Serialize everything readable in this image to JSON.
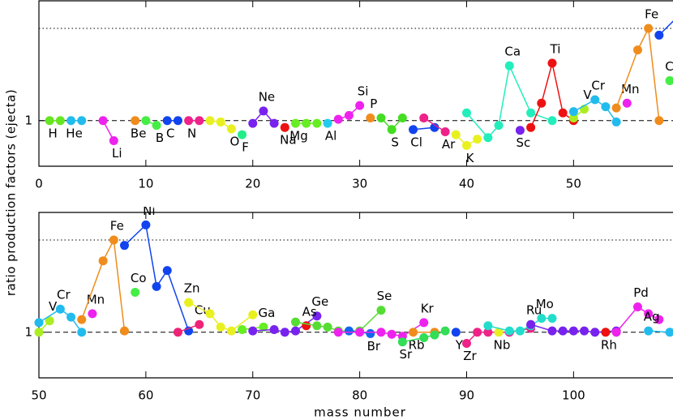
{
  "chart_data": [
    {
      "type": "line",
      "ylabel": "ratio production factors (ejecta)",
      "xlim": [
        0,
        59.3
      ],
      "ylim": [
        0.71,
        2.46
      ],
      "log_y": true,
      "xticks": [
        0,
        10,
        20,
        30,
        40,
        50
      ],
      "yticks": [
        1
      ],
      "hlines": [
        {
          "value": 1,
          "style": "dashed"
        },
        {
          "value": 2,
          "style": "dotted"
        }
      ],
      "series": [
        {
          "name": "H",
          "color": "#66e622",
          "x": [
            1,
            2
          ],
          "values": [
            1,
            1
          ]
        },
        {
          "name": "He",
          "color": "#22bbee",
          "x": [
            3,
            4
          ],
          "values": [
            1,
            1
          ]
        },
        {
          "name": "Li",
          "color": "#ee22ee",
          "x": [
            6,
            7
          ],
          "values": [
            1,
            0.86
          ]
        },
        {
          "name": "Be",
          "color": "#f08c1c",
          "x": [
            9
          ],
          "values": [
            1
          ]
        },
        {
          "name": "B",
          "color": "#44ee44",
          "x": [
            10,
            11
          ],
          "values": [
            1,
            0.965
          ]
        },
        {
          "name": "C",
          "color": "#1144ee",
          "x": [
            12,
            13
          ],
          "values": [
            1,
            1
          ]
        },
        {
          "name": "N",
          "color": "#ee2288",
          "x": [
            14,
            15
          ],
          "values": [
            1,
            1
          ]
        },
        {
          "name": "O",
          "color": "#e8f020",
          "x": [
            16,
            17,
            18
          ],
          "values": [
            1,
            0.99,
            0.94
          ]
        },
        {
          "name": "F",
          "color": "#22ee88",
          "x": [
            19
          ],
          "values": [
            0.9
          ]
        },
        {
          "name": "Ne",
          "color": "#7722ee",
          "x": [
            20,
            21,
            22
          ],
          "values": [
            0.98,
            1.075,
            0.98
          ]
        },
        {
          "name": "Na",
          "color": "#ee1111",
          "x": [
            23
          ],
          "values": [
            0.95
          ]
        },
        {
          "name": "Mg",
          "color": "#66ee22",
          "x": [
            24,
            25,
            26
          ],
          "values": [
            0.98,
            0.98,
            0.98
          ]
        },
        {
          "name": "Al",
          "color": "#22ccee",
          "x": [
            27
          ],
          "values": [
            0.98
          ]
        },
        {
          "name": "Si",
          "color": "#ee22ee",
          "x": [
            28,
            29,
            30
          ],
          "values": [
            1.01,
            1.04,
            1.12
          ]
        },
        {
          "name": "P",
          "color": "#f08c1c",
          "x": [
            31
          ],
          "values": [
            1.02
          ]
        },
        {
          "name": "S",
          "color": "#44dd22",
          "x": [
            32,
            33,
            34
          ],
          "values": [
            1.02,
            0.935,
            1.02
          ]
        },
        {
          "name": "Cl",
          "color": "#1144ee",
          "x": [
            35,
            37
          ],
          "values": [
            0.935,
            0.95
          ]
        },
        {
          "name": "Ar",
          "color": "#ee2288",
          "x": [
            36,
            38
          ],
          "values": [
            1.02,
            0.92
          ]
        },
        {
          "name": "K",
          "color": "#e8f020",
          "x": [
            39,
            40,
            41
          ],
          "values": [
            0.9,
            0.83,
            0.87
          ]
        },
        {
          "name": "Ca",
          "color": "#22eebb",
          "x": [
            40,
            42,
            43,
            44,
            46,
            48
          ],
          "values": [
            1.06,
            0.88,
            0.965,
            1.51,
            1.06,
            1
          ]
        },
        {
          "name": "Sc",
          "color": "#7722ee",
          "x": [
            45
          ],
          "values": [
            0.93
          ]
        },
        {
          "name": "Ti",
          "color": "#ee1111",
          "x": [
            46,
            47,
            48,
            49,
            50
          ],
          "values": [
            0.95,
            1.14,
            1.54,
            1.06,
            1
          ]
        },
        {
          "name": "V",
          "color": "#aaee22",
          "x": [
            50,
            51
          ],
          "values": [
            1.02,
            1.09
          ]
        },
        {
          "name": "Cr",
          "color": "#22bbee",
          "x": [
            50,
            52,
            53,
            54
          ],
          "values": [
            1.07,
            1.17,
            1.11,
            0.99
          ]
        },
        {
          "name": "Mn",
          "color": "#ee22ee",
          "x": [
            55
          ],
          "values": [
            1.14
          ]
        },
        {
          "name": "Fe",
          "color": "#f08c1c",
          "x": [
            54,
            56,
            57,
            58
          ],
          "values": [
            1.1,
            1.7,
            2.0,
            1
          ]
        },
        {
          "name": "Co",
          "color": "#44ee44",
          "x": [
            59
          ],
          "values": [
            1.35
          ]
        },
        {
          "name": "Ni",
          "color": "#1144ee",
          "x": [
            58,
            60
          ],
          "values": [
            1.9,
            2.23
          ]
        }
      ]
    },
    {
      "type": "line",
      "xlabel": "mass number",
      "xlim": [
        50,
        109.3
      ],
      "ylim": [
        0.71,
        2.46
      ],
      "log_y": true,
      "xticks": [
        50,
        60,
        70,
        80,
        90,
        100
      ],
      "yticks": [
        1
      ],
      "hlines": [
        {
          "value": 1,
          "style": "dashed"
        },
        {
          "value": 2,
          "style": "dotted"
        }
      ],
      "series": [
        {
          "name": "V",
          "color": "#aaee22",
          "x": [
            50,
            51
          ],
          "values": [
            1,
            1.09
          ]
        },
        {
          "name": "Cr",
          "color": "#22bbee",
          "x": [
            50,
            52,
            53,
            54
          ],
          "values": [
            1.075,
            1.19,
            1.12,
            1
          ]
        },
        {
          "name": "Mn",
          "color": "#ee22ee",
          "x": [
            55
          ],
          "values": [
            1.15
          ]
        },
        {
          "name": "Fe",
          "color": "#f08c1c",
          "x": [
            54,
            56,
            57,
            58
          ],
          "values": [
            1.1,
            1.71,
            2.0,
            1.01
          ]
        },
        {
          "name": "Co",
          "color": "#44ee44",
          "x": [
            59
          ],
          "values": [
            1.35
          ]
        },
        {
          "name": "Ni",
          "color": "#1144ee",
          "x": [
            58,
            60,
            61,
            62,
            64
          ],
          "values": [
            1.92,
            2.24,
            1.41,
            1.59,
            1.01
          ]
        },
        {
          "name": "Cu",
          "color": "#ee2277",
          "x": [
            63,
            65
          ],
          "values": [
            1,
            1.06
          ]
        },
        {
          "name": "Zn",
          "color": "#e8f020",
          "x": [
            64,
            66,
            67,
            68,
            70
          ],
          "values": [
            1.25,
            1.15,
            1.04,
            1.01,
            1.14
          ]
        },
        {
          "name": "Ga",
          "color": "#66ee22",
          "x": [
            69,
            71
          ],
          "values": [
            1.02,
            1.04
          ]
        },
        {
          "name": "Ge",
          "color": "#7722ee",
          "x": [
            70,
            72,
            73,
            74,
            76
          ],
          "values": [
            1.01,
            1.02,
            1,
            1.01,
            1.13
          ]
        },
        {
          "name": "As",
          "color": "#ee1111",
          "x": [
            75
          ],
          "values": [
            1.05
          ]
        },
        {
          "name": "Se",
          "color": "#55dd33",
          "x": [
            74,
            76,
            77,
            78,
            80,
            82
          ],
          "values": [
            1.08,
            1.05,
            1.04,
            1.01,
            1.01,
            1.18
          ]
        },
        {
          "name": "Br",
          "color": "#1166ee",
          "x": [
            79,
            81
          ],
          "values": [
            1.01,
            0.99
          ]
        },
        {
          "name": "Kr",
          "color": "#ee22ee",
          "x": [
            78,
            80,
            82,
            83,
            84,
            86
          ],
          "values": [
            1,
            1,
            1,
            0.985,
            0.97,
            1.075
          ]
        },
        {
          "name": "Rb",
          "color": "#f08c1c",
          "x": [
            85,
            87
          ],
          "values": [
            1,
            1
          ]
        },
        {
          "name": "Sr",
          "color": "#33dd55",
          "x": [
            84,
            86,
            87,
            88
          ],
          "values": [
            0.93,
            0.96,
            0.98,
            1.01
          ]
        },
        {
          "name": "Y",
          "color": "#1144ee",
          "x": [
            89
          ],
          "values": [
            1
          ]
        },
        {
          "name": "Zr",
          "color": "#ee2288",
          "x": [
            90,
            91,
            92,
            94,
            96
          ],
          "values": [
            0.92,
            1,
            1,
            1,
            1.03
          ]
        },
        {
          "name": "Nb",
          "color": "#e8f020",
          "x": [
            93
          ],
          "values": [
            1
          ]
        },
        {
          "name": "Mo",
          "color": "#22ddcc",
          "x": [
            92,
            94,
            95,
            96,
            97,
            98
          ],
          "values": [
            1.05,
            1.01,
            1.01,
            1.05,
            1.11,
            1.11
          ]
        },
        {
          "name": "Ru",
          "color": "#7722ee",
          "x": [
            96,
            98,
            99,
            100,
            101,
            102,
            104
          ],
          "values": [
            1.06,
            1.01,
            1.01,
            1.01,
            1.01,
            1,
            1.01
          ]
        },
        {
          "name": "Rh",
          "color": "#ee1111",
          "x": [
            103
          ],
          "values": [
            1
          ]
        },
        {
          "name": "Pd",
          "color": "#ee22ee",
          "x": [
            104,
            106,
            107,
            108
          ],
          "values": [
            1,
            1.21,
            1.15,
            1.1
          ]
        },
        {
          "name": "Ag",
          "color": "#22bbee",
          "x": [
            107,
            109
          ],
          "values": [
            1.01,
            1
          ]
        }
      ]
    }
  ]
}
